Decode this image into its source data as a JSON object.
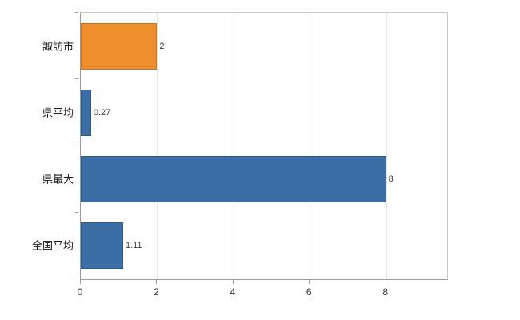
{
  "chart_data": {
    "type": "bar",
    "orientation": "horizontal",
    "title": "",
    "xlabel": "",
    "ylabel": "",
    "categories": [
      "諏訪市",
      "県平均",
      "県最大",
      "全国平均"
    ],
    "values": [
      2,
      0.27,
      8,
      1.11
    ],
    "value_labels": [
      "2",
      "0.27",
      "8",
      "1.11"
    ],
    "bar_colors": [
      "#ee8e2d",
      "#3b6ea5",
      "#3b6ea5",
      "#3b6ea5"
    ],
    "bar_border_colors": [
      "#c9741f",
      "#2e5a8a",
      "#2e5a8a",
      "#2e5a8a"
    ],
    "xlim": [
      0,
      9.6
    ],
    "xticks": [
      0,
      2,
      4,
      6,
      8
    ],
    "xtick_labels": [
      "0",
      "2",
      "4",
      "6",
      "8"
    ],
    "grid": true,
    "legend": "none",
    "colors": {
      "grid": "#e6e6e6",
      "axis": "#9a9a9a",
      "background": "#ffffff"
    }
  }
}
